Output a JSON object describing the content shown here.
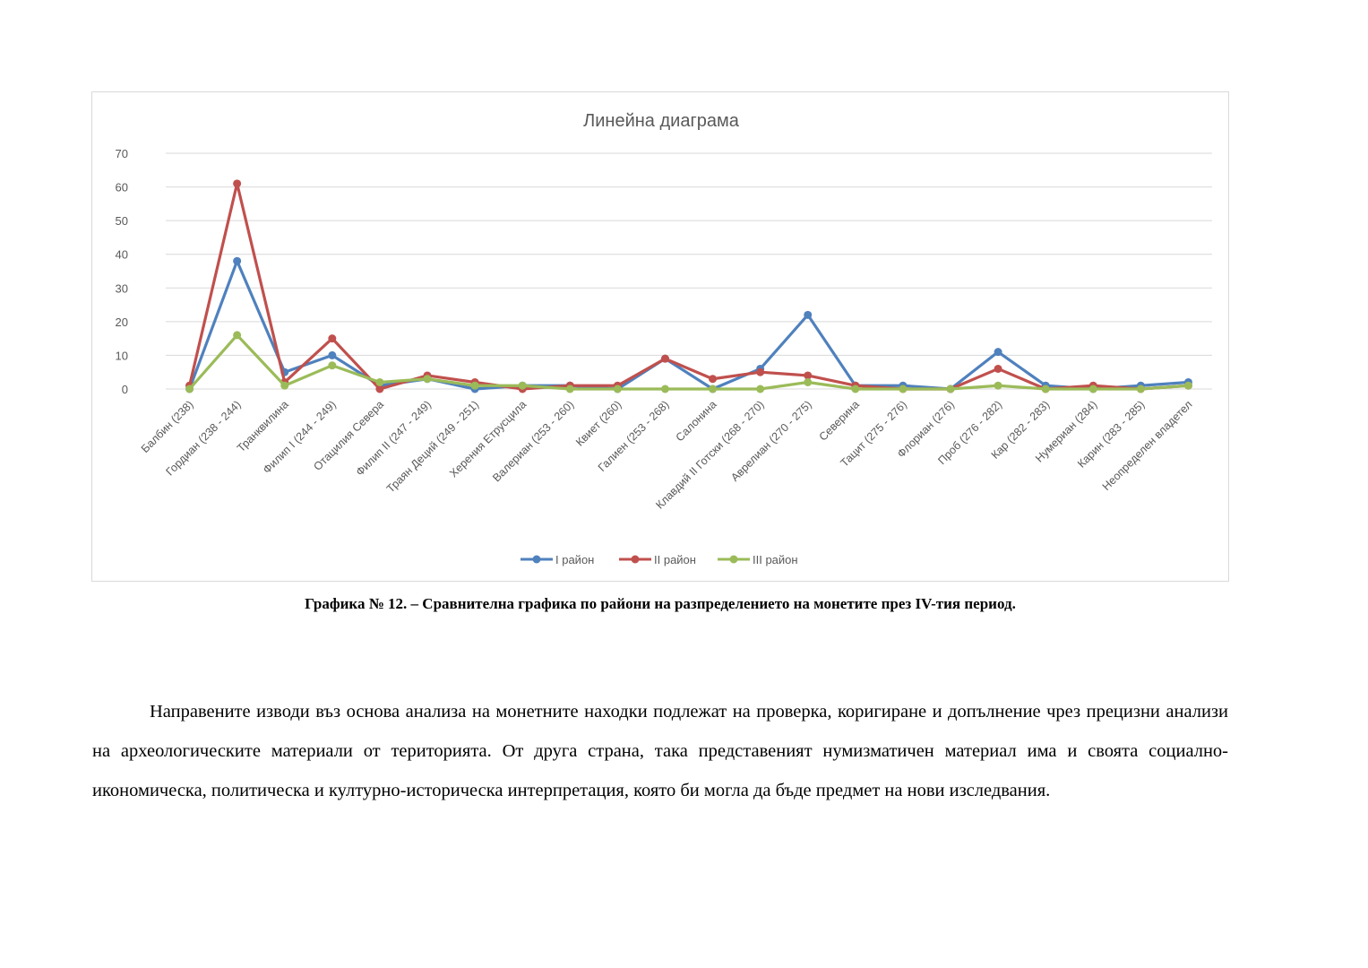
{
  "chart_data": {
    "type": "line",
    "title": "Линейна диаграма",
    "categories": [
      "Балбин (238)",
      "Гордиан (238 - 244)",
      "Транквилина",
      "Филип I (244 - 249)",
      "Отацилия Севера",
      "Филип II (247 - 249)",
      "Траян Деций (249 - 251)",
      "Херения Етрусцила",
      "Валериан (253 - 260)",
      "Квиет (260)",
      "Галиен (253 - 268)",
      "Салонина",
      "Клавдий II Готски (268 - 270)",
      "Аврелиан (270 - 275)",
      "Северина",
      "Тацит (275 - 276)",
      "Флориан (276)",
      "Проб (276 - 282)",
      "Кар (282 - 283)",
      "Нумериан (284)",
      "Карин (283 - 285)",
      "Неопределен владетел"
    ],
    "series": [
      {
        "name": "I район",
        "color": "#4f81bd",
        "values": [
          0,
          38,
          5,
          10,
          1,
          3,
          0,
          1,
          1,
          0,
          9,
          0,
          6,
          22,
          1,
          1,
          0,
          11,
          1,
          0,
          1,
          2
        ]
      },
      {
        "name": "II район",
        "color": "#c0504d",
        "values": [
          1,
          61,
          2,
          15,
          0,
          4,
          2,
          0,
          1,
          1,
          9,
          3,
          5,
          4,
          1,
          0,
          0,
          6,
          0,
          1,
          0,
          1
        ]
      },
      {
        "name": "III район",
        "color": "#9bbb59",
        "values": [
          0,
          16,
          1,
          7,
          2,
          3,
          1,
          1,
          0,
          0,
          0,
          0,
          0,
          2,
          0,
          0,
          0,
          1,
          0,
          0,
          0,
          1
        ]
      }
    ],
    "ylim": [
      0,
      70
    ],
    "yticks": [
      0,
      10,
      20,
      30,
      40,
      50,
      60,
      70
    ],
    "grid": true,
    "legend": "bottom",
    "xlabel": "",
    "ylabel": ""
  },
  "caption": "Графика № 12. – Сравнителна графика по райони на разпределението на монетите през IV-тия период.",
  "paragraph": "Направените изводи въз основа анализа на монетните находки подлежат на проверка, коригиране и допълнение чрез прецизни анализи на археологическите материали от територията. От друга страна, така представеният нумизматичен материал има и своята социално-икономическа, политическа и културно-историческа интерпретация, която би могла да бъде предмет на нови изследвания."
}
